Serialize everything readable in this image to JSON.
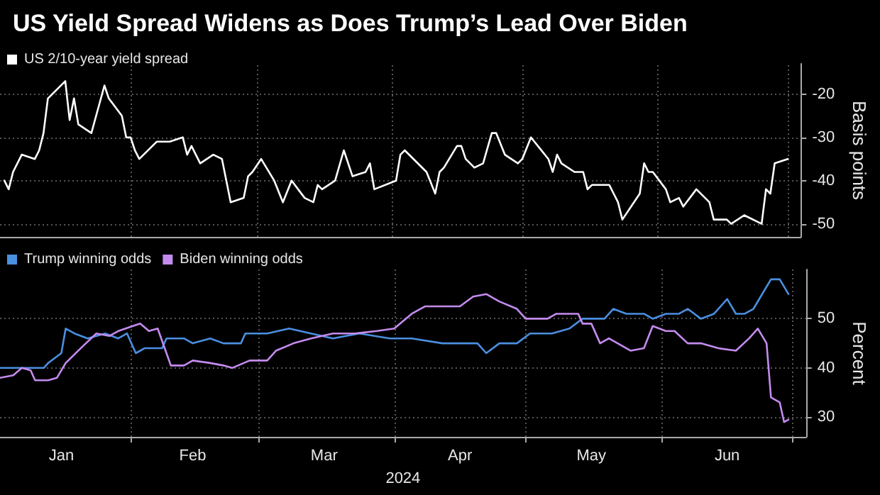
{
  "chart_data": [
    {
      "type": "line",
      "title": "US Yield Spread Widens as Does Trump’s Lead Over Biden",
      "ylabel": "Basis points",
      "series": [
        {
          "name": "US 2/10-year yield spread",
          "color": "#ffffff",
          "x": [
            "2024-01-03",
            "2024-01-04",
            "2024-01-05",
            "2024-01-07",
            "2024-01-10",
            "2024-01-11",
            "2024-01-12",
            "2024-01-13",
            "2024-01-17",
            "2024-01-18",
            "2024-01-19",
            "2024-01-20",
            "2024-01-23",
            "2024-01-26",
            "2024-01-27",
            "2024-01-30",
            "2024-01-31",
            "2024-02-01",
            "2024-02-02",
            "2024-02-03",
            "2024-02-07",
            "2024-02-08",
            "2024-02-09",
            "2024-02-10",
            "2024-02-13",
            "2024-02-14",
            "2024-02-15",
            "2024-02-17",
            "2024-02-20",
            "2024-02-22",
            "2024-02-24",
            "2024-02-27",
            "2024-02-28",
            "2024-02-29",
            "2024-03-02",
            "2024-03-05",
            "2024-03-07",
            "2024-03-09",
            "2024-03-12",
            "2024-03-14",
            "2024-03-15",
            "2024-03-16",
            "2024-03-19",
            "2024-03-21",
            "2024-03-23",
            "2024-03-26",
            "2024-03-27",
            "2024-03-28",
            "2024-04-02",
            "2024-04-03",
            "2024-04-04",
            "2024-04-09",
            "2024-04-11",
            "2024-04-12",
            "2024-04-13",
            "2024-04-16",
            "2024-04-17",
            "2024-04-18",
            "2024-04-20",
            "2024-04-22",
            "2024-04-24",
            "2024-04-25",
            "2024-04-27",
            "2024-04-30",
            "2024-05-01",
            "2024-05-03",
            "2024-05-07",
            "2024-05-08",
            "2024-05-09",
            "2024-05-10",
            "2024-05-13",
            "2024-05-15",
            "2024-05-16",
            "2024-05-17",
            "2024-05-21",
            "2024-05-22",
            "2024-05-23",
            "2024-05-24",
            "2024-05-28",
            "2024-05-29",
            "2024-05-30",
            "2024-05-31",
            "2024-06-03",
            "2024-06-04",
            "2024-06-06",
            "2024-06-07",
            "2024-06-10",
            "2024-06-13",
            "2024-06-14",
            "2024-06-17",
            "2024-06-18",
            "2024-06-21",
            "2024-06-25",
            "2024-06-26",
            "2024-06-27",
            "2024-06-28",
            "2024-07-01"
          ],
          "values": [
            -40,
            -42,
            -38,
            -34,
            -35,
            -33,
            -29,
            -21,
            -17,
            -26,
            -21,
            -27,
            -29,
            -18,
            -21,
            -25,
            -30,
            -30,
            -33,
            -35,
            -31,
            -31,
            -31,
            -31,
            -30,
            -34,
            -32,
            -36,
            -34,
            -35,
            -45,
            -44,
            -39,
            -38,
            -35,
            -40,
            -45,
            -40,
            -44,
            -45,
            -41,
            -42,
            -40,
            -33,
            -39,
            -38,
            -36,
            -42,
            -40,
            -34,
            -33,
            -38,
            -43,
            -38,
            -37,
            -32,
            -32,
            -35,
            -37,
            -36,
            -29,
            -29,
            -34,
            -36,
            -35,
            -30,
            -35,
            -38,
            -34,
            -36,
            -38,
            -38,
            -42,
            -41,
            -41,
            -43,
            -45,
            -49,
            -43,
            -36,
            -38,
            -38,
            -42,
            -45,
            -44,
            -46,
            -42,
            -45,
            -49,
            -49,
            -50,
            -48,
            -50,
            -42,
            -43,
            -36,
            -35
          ]
        }
      ],
      "xlim": [
        "2024-01-02",
        "2024-07-04"
      ],
      "xticks": [
        {
          "value": "2024-02-01",
          "label": null
        },
        {
          "value": "2024-03-01",
          "label": null
        },
        {
          "value": "2024-04-01",
          "label": null
        },
        {
          "value": "2024-05-01",
          "label": null
        },
        {
          "value": "2024-06-01",
          "label": null
        },
        {
          "value": "2024-07-01",
          "label": null
        }
      ],
      "ylim": [
        -53,
        -13
      ],
      "yticks": [
        -20,
        -30,
        -40,
        -50
      ],
      "tick_labels": "y",
      "grid": true,
      "legend": "top left",
      "marker": "none",
      "line_style": "solid"
    },
    {
      "type": "line",
      "ylabel": "Percent",
      "xlabel": "2024",
      "series": [
        {
          "name": "Trump winning odds",
          "color": "#4a8fe0",
          "x": [
            "2024-01-02",
            "2024-01-10",
            "2024-01-12",
            "2024-01-13",
            "2024-01-16",
            "2024-01-17",
            "2024-01-19",
            "2024-01-22",
            "2024-01-26",
            "2024-01-29",
            "2024-01-31",
            "2024-02-02",
            "2024-02-04",
            "2024-02-08",
            "2024-02-09",
            "2024-02-13",
            "2024-02-15",
            "2024-02-19",
            "2024-02-22",
            "2024-02-26",
            "2024-02-27",
            "2024-03-03",
            "2024-03-08",
            "2024-03-13",
            "2024-03-18",
            "2024-03-24",
            "2024-03-31",
            "2024-04-05",
            "2024-04-12",
            "2024-04-17",
            "2024-04-20",
            "2024-04-22",
            "2024-04-25",
            "2024-04-29",
            "2024-05-02",
            "2024-05-07",
            "2024-05-11",
            "2024-05-14",
            "2024-05-19",
            "2024-05-21",
            "2024-05-24",
            "2024-05-28",
            "2024-05-30",
            "2024-06-02",
            "2024-06-05",
            "2024-06-07",
            "2024-06-10",
            "2024-06-13",
            "2024-06-16",
            "2024-06-18",
            "2024-06-20",
            "2024-06-22",
            "2024-06-26",
            "2024-06-28",
            "2024-06-30"
          ],
          "values": [
            40,
            40,
            40,
            41,
            43,
            48,
            47,
            46,
            47,
            46,
            47,
            43,
            44,
            44,
            46,
            46,
            45,
            46,
            45,
            45,
            47,
            47,
            48,
            47,
            46,
            47,
            46,
            46,
            45,
            45,
            45,
            43,
            45,
            45,
            47,
            47,
            48,
            50,
            50,
            52,
            51,
            51,
            50,
            51,
            51,
            52,
            50,
            51,
            54,
            51,
            51,
            52,
            58,
            58,
            55
          ]
        },
        {
          "name": "Biden winning odds",
          "color": "#c48bee",
          "x": [
            "2024-01-02",
            "2024-01-05",
            "2024-01-07",
            "2024-01-09",
            "2024-01-10",
            "2024-01-13",
            "2024-01-15",
            "2024-01-17",
            "2024-01-21",
            "2024-01-24",
            "2024-01-27",
            "2024-01-29",
            "2024-02-03",
            "2024-02-05",
            "2024-02-07",
            "2024-02-09",
            "2024-02-10",
            "2024-02-13",
            "2024-02-15",
            "2024-02-19",
            "2024-02-22",
            "2024-02-24",
            "2024-02-28",
            "2024-03-03",
            "2024-03-05",
            "2024-03-09",
            "2024-03-13",
            "2024-03-18",
            "2024-03-23",
            "2024-03-28",
            "2024-04-01",
            "2024-04-05",
            "2024-04-08",
            "2024-04-12",
            "2024-04-16",
            "2024-04-19",
            "2024-04-22",
            "2024-04-25",
            "2024-04-29",
            "2024-05-01",
            "2024-05-06",
            "2024-05-08",
            "2024-05-13",
            "2024-05-14",
            "2024-05-16",
            "2024-05-18",
            "2024-05-20",
            "2024-05-23",
            "2024-05-25",
            "2024-05-28",
            "2024-05-30",
            "2024-06-02",
            "2024-06-04",
            "2024-06-07",
            "2024-06-10",
            "2024-06-14",
            "2024-06-18",
            "2024-06-21",
            "2024-06-23",
            "2024-06-25",
            "2024-06-26",
            "2024-06-28",
            "2024-06-29",
            "2024-06-30"
          ],
          "values": [
            38,
            38.5,
            40,
            39.5,
            37.5,
            37.5,
            38,
            41,
            44.5,
            47,
            46.5,
            47.5,
            49,
            47.5,
            48,
            43,
            40.5,
            40.5,
            41.5,
            41,
            40.5,
            40,
            41.5,
            41.5,
            43.5,
            45,
            46,
            47,
            47,
            47.5,
            48,
            51,
            52.5,
            52.5,
            52.5,
            54.5,
            55,
            53.5,
            52,
            50,
            50,
            51,
            51,
            49,
            49,
            45,
            46,
            44.5,
            43.5,
            44,
            48.5,
            47.5,
            47.5,
            45,
            45,
            44,
            43.5,
            46,
            48,
            45,
            34,
            33,
            29,
            29.5
          ]
        }
      ],
      "xlim": [
        "2024-01-02",
        "2024-07-04"
      ],
      "xticks": [
        {
          "value": "2024-01-16",
          "label": "Jan"
        },
        {
          "value": "2024-02-01",
          "label": null
        },
        {
          "value": "2024-02-15",
          "label": "Feb"
        },
        {
          "value": "2024-03-01",
          "label": null
        },
        {
          "value": "2024-03-16",
          "label": "Mar"
        },
        {
          "value": "2024-04-01",
          "label": null
        },
        {
          "value": "2024-04-16",
          "label": "Apr"
        },
        {
          "value": "2024-05-01",
          "label": null
        },
        {
          "value": "2024-05-16",
          "label": "May"
        },
        {
          "value": "2024-06-01",
          "label": null
        },
        {
          "value": "2024-06-16",
          "label": "Jun"
        },
        {
          "value": "2024-07-01",
          "label": null
        }
      ],
      "ylim": [
        26,
        60
      ],
      "yticks": [
        30,
        40,
        50
      ],
      "grid": true,
      "legend": "top left",
      "marker": "none",
      "line_style": "solid"
    }
  ]
}
